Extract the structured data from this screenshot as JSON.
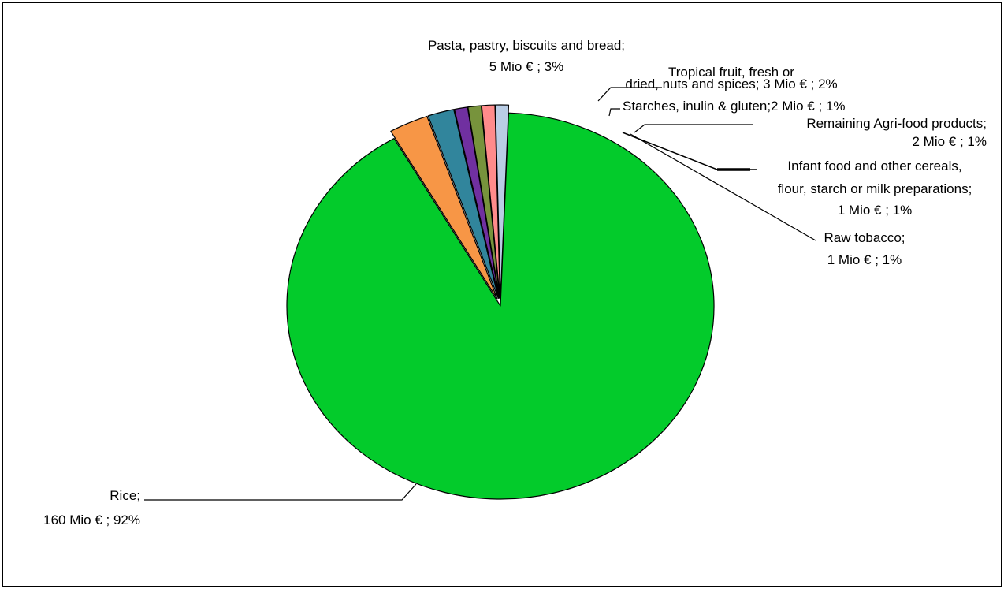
{
  "chart_data": {
    "type": "pie",
    "title": "",
    "slices": [
      {
        "name": "Rice",
        "value": 160,
        "percent": 92,
        "label_lines": [
          "Rice;",
          "160 Mio € ; 92%"
        ],
        "color": "#03cb2b",
        "exploded": false
      },
      {
        "name": "Pasta, pastry, biscuits and bread",
        "value": 5,
        "percent": 3,
        "label_lines": [
          "Pasta, pastry, biscuits and bread;",
          "5 Mio € ; 3%"
        ],
        "color": "#f79646",
        "exploded": true
      },
      {
        "name": "Tropical fruit, fresh or dried, nuts and spices",
        "value": 3,
        "percent": 2,
        "label_lines": [
          "Tropical fruit, fresh or",
          "dried, nuts and spices; 3 Mio € ; 2%"
        ],
        "color": "#31859c",
        "exploded": true
      },
      {
        "name": "Starches, inulin & gluten",
        "value": 2,
        "percent": 1,
        "label_lines": [
          "Starches, inulin & gluten;2 Mio € ; 1%"
        ],
        "color": "#7030a0",
        "exploded": true
      },
      {
        "name": "Infant food and other cereals, flour, starch or milk preparations",
        "value": 1,
        "percent": 1,
        "label_lines": [
          "Infant food and other cereals,",
          "flour, starch or milk preparations;",
          "1 Mio € ; 1%"
        ],
        "color": "#77933c",
        "exploded": true
      },
      {
        "name": "Raw tobacco",
        "value": 1,
        "percent": 1,
        "label_lines": [
          "Raw tobacco;",
          "1 Mio € ; 1%"
        ],
        "color": "#ff8b8b",
        "exploded": true
      },
      {
        "name": "Remaining Agri-food products",
        "value": 2,
        "percent": 1,
        "label_lines": [
          "Remaining Agri-food products;",
          "2 Mio € ; 1%"
        ],
        "color": "#b9cde5",
        "exploded": true
      }
    ],
    "legend": "none",
    "border": true
  }
}
